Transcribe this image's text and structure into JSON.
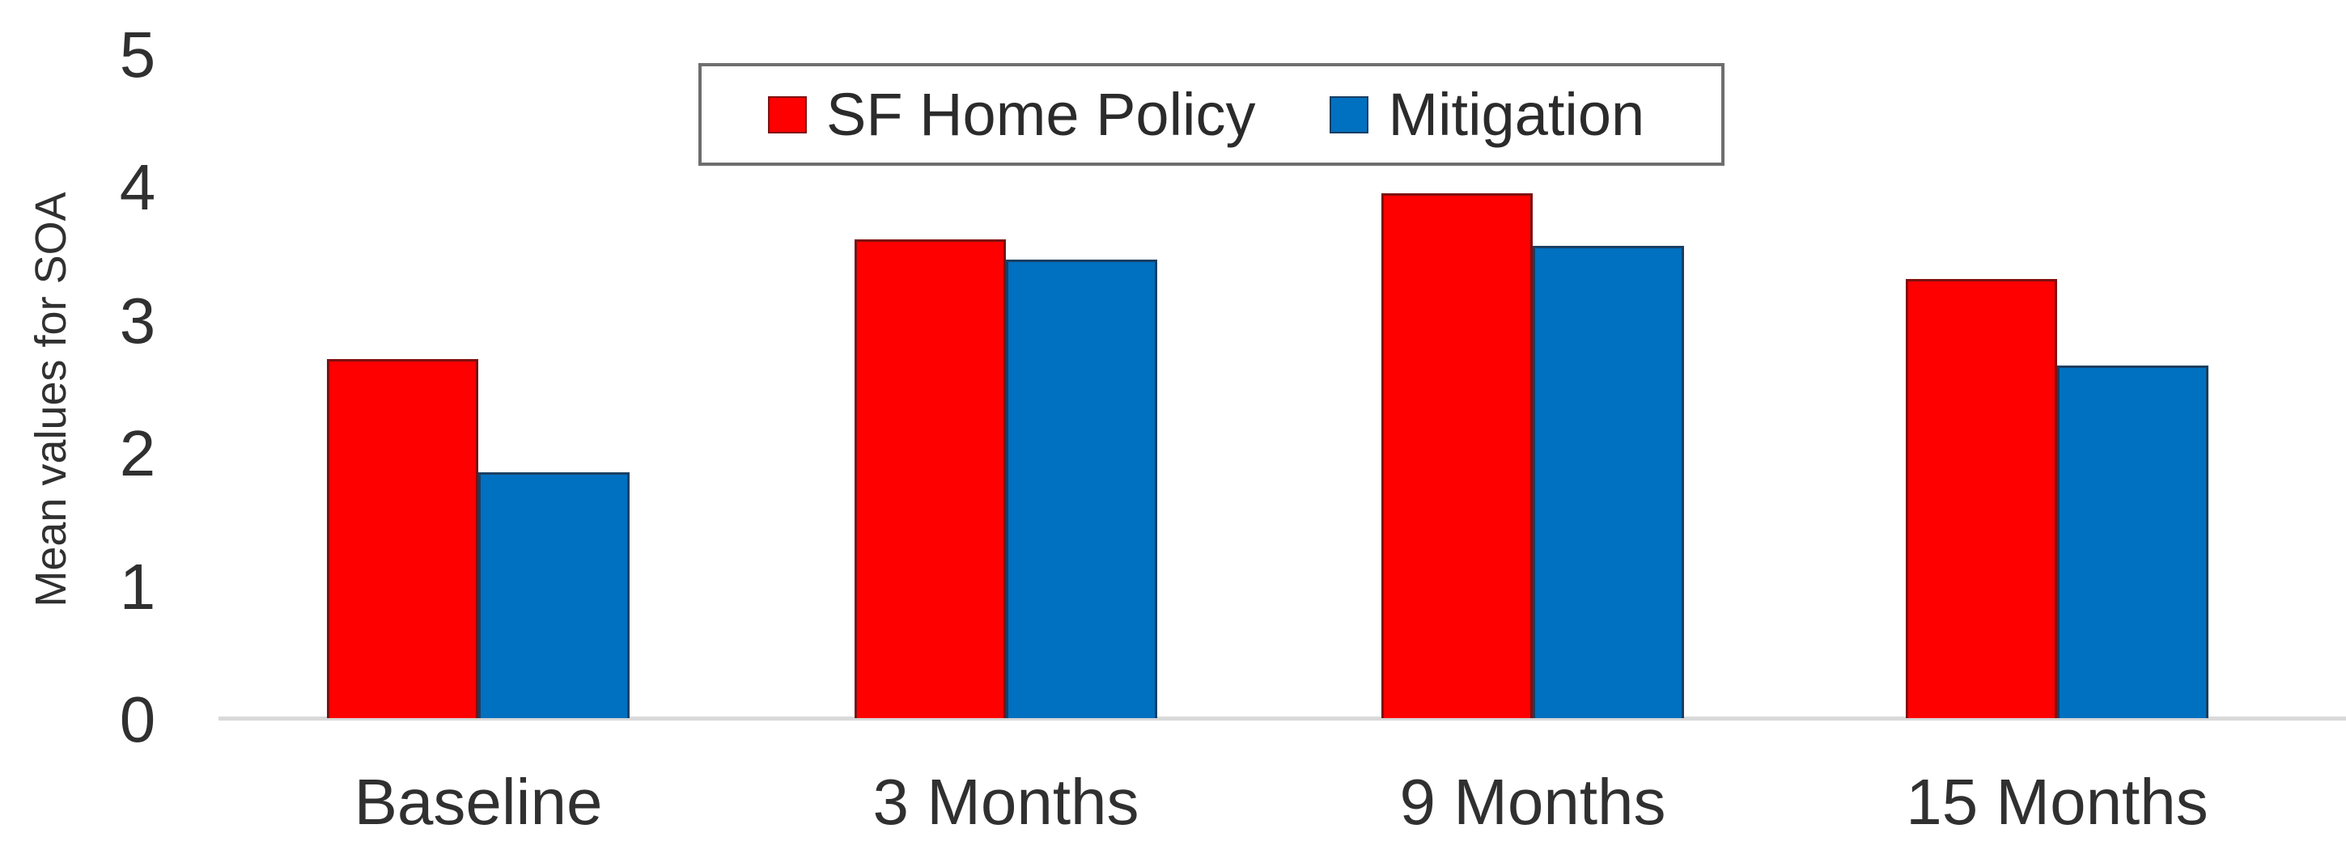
{
  "chart_data": {
    "type": "bar",
    "title": "",
    "categories": [
      "Baseline",
      "3 Months",
      "9 Months",
      "15 Months"
    ],
    "series": [
      {
        "name": "SF Home Policy",
        "color": "#fe0000",
        "border_color": "#7f1010",
        "values": [
          2.7,
          3.6,
          3.95,
          3.3
        ]
      },
      {
        "name": "Mitigation",
        "color": "#0070c0",
        "border_color": "#1a3f63",
        "values": [
          1.85,
          3.45,
          3.55,
          2.65
        ]
      }
    ],
    "xlabel": "",
    "ylabel": "Mean values for SOA",
    "yticks": [
      0,
      1,
      2,
      3,
      4,
      5
    ],
    "ylim": [
      0,
      5
    ],
    "grid": false,
    "legend_position": "top-center",
    "axis_line_color": "#d9d9d9",
    "text_color": "#303030"
  }
}
